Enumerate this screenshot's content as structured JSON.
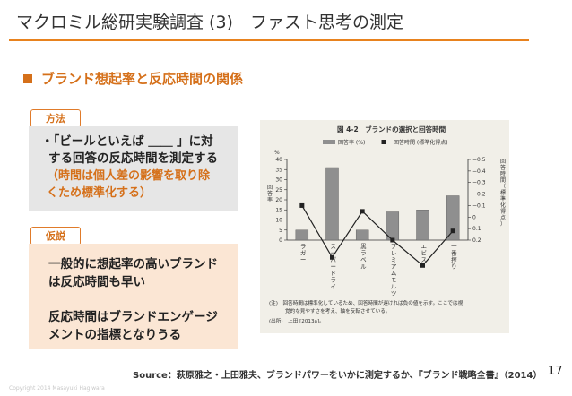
{
  "header": {
    "title": "マクロミル総研実験調査 (3)　ファスト思考の測定",
    "subhead": "ブランド想起率と反応時間の関係"
  },
  "method": {
    "tag": "方法",
    "text_lines": [
      "・「ビールといえば ＿＿ 」に対",
      "する回答の反応時間を測定する"
    ],
    "note_lines": [
      "（時間は個人差の影響を取り除",
      "くため標準化する）"
    ]
  },
  "hypothesis": {
    "tag": "仮説",
    "para1_lines": [
      "一般的に想起率の高いブランド",
      "は反応時間も早い"
    ],
    "para2_lines": [
      "反応時間はブランドエンゲージ",
      "メントの指標となりうる"
    ]
  },
  "footer": {
    "source": "Source：萩原雅之・上田雅夫、ブランドパワーをいかに測定するか、『ブランド戦略全書』（2014）",
    "page": "17",
    "copyright": "Copyright 2014 Masayuki Hagiwara"
  },
  "colors": {
    "accent": "#e8821e",
    "bar": "#8f8f8f",
    "line": "#222222"
  },
  "chart_data": {
    "type": "bar",
    "title": "図 4-2　ブランドの選択と回答時間",
    "categories": [
      "ラガー",
      "スーパードライ",
      "黒ラベル",
      "プレミアムモルツ",
      "エビス",
      "一番搾り"
    ],
    "series": [
      {
        "name": "回答率 (%)",
        "type": "bar",
        "axis": "left",
        "values": [
          5,
          36,
          5,
          14,
          15,
          22
        ]
      },
      {
        "name": "回答時間 (標準化得点)",
        "type": "line",
        "axis": "right",
        "values": [
          -0.1,
          0.35,
          -0.05,
          0.2,
          0.42,
          0.12
        ]
      }
    ],
    "ylabel_left": "回答率",
    "yunit_left": "%",
    "ylim_left": [
      0,
      40
    ],
    "yticks_left": [
      "0",
      "5",
      "10",
      "15",
      "20",
      "25",
      "30",
      "35",
      "40"
    ],
    "ylabel_right": "回答時間（標準化得点）",
    "ylim_right": [
      0.2,
      -0.5
    ],
    "yticks_right": [
      "−0.5",
      "−0.4",
      "−0.3",
      "−0.2",
      "−0.1",
      "0",
      "0.1",
      "0.2"
    ],
    "note_lines": [
      "(注)　回答時間は標準化しているため、回答時間が遅ければ負の値を示す。ここでは視",
      "覚的な見やすさを考え、軸を反転させている。"
    ],
    "source_note": "(出所)　上田 [2013a]。"
  }
}
